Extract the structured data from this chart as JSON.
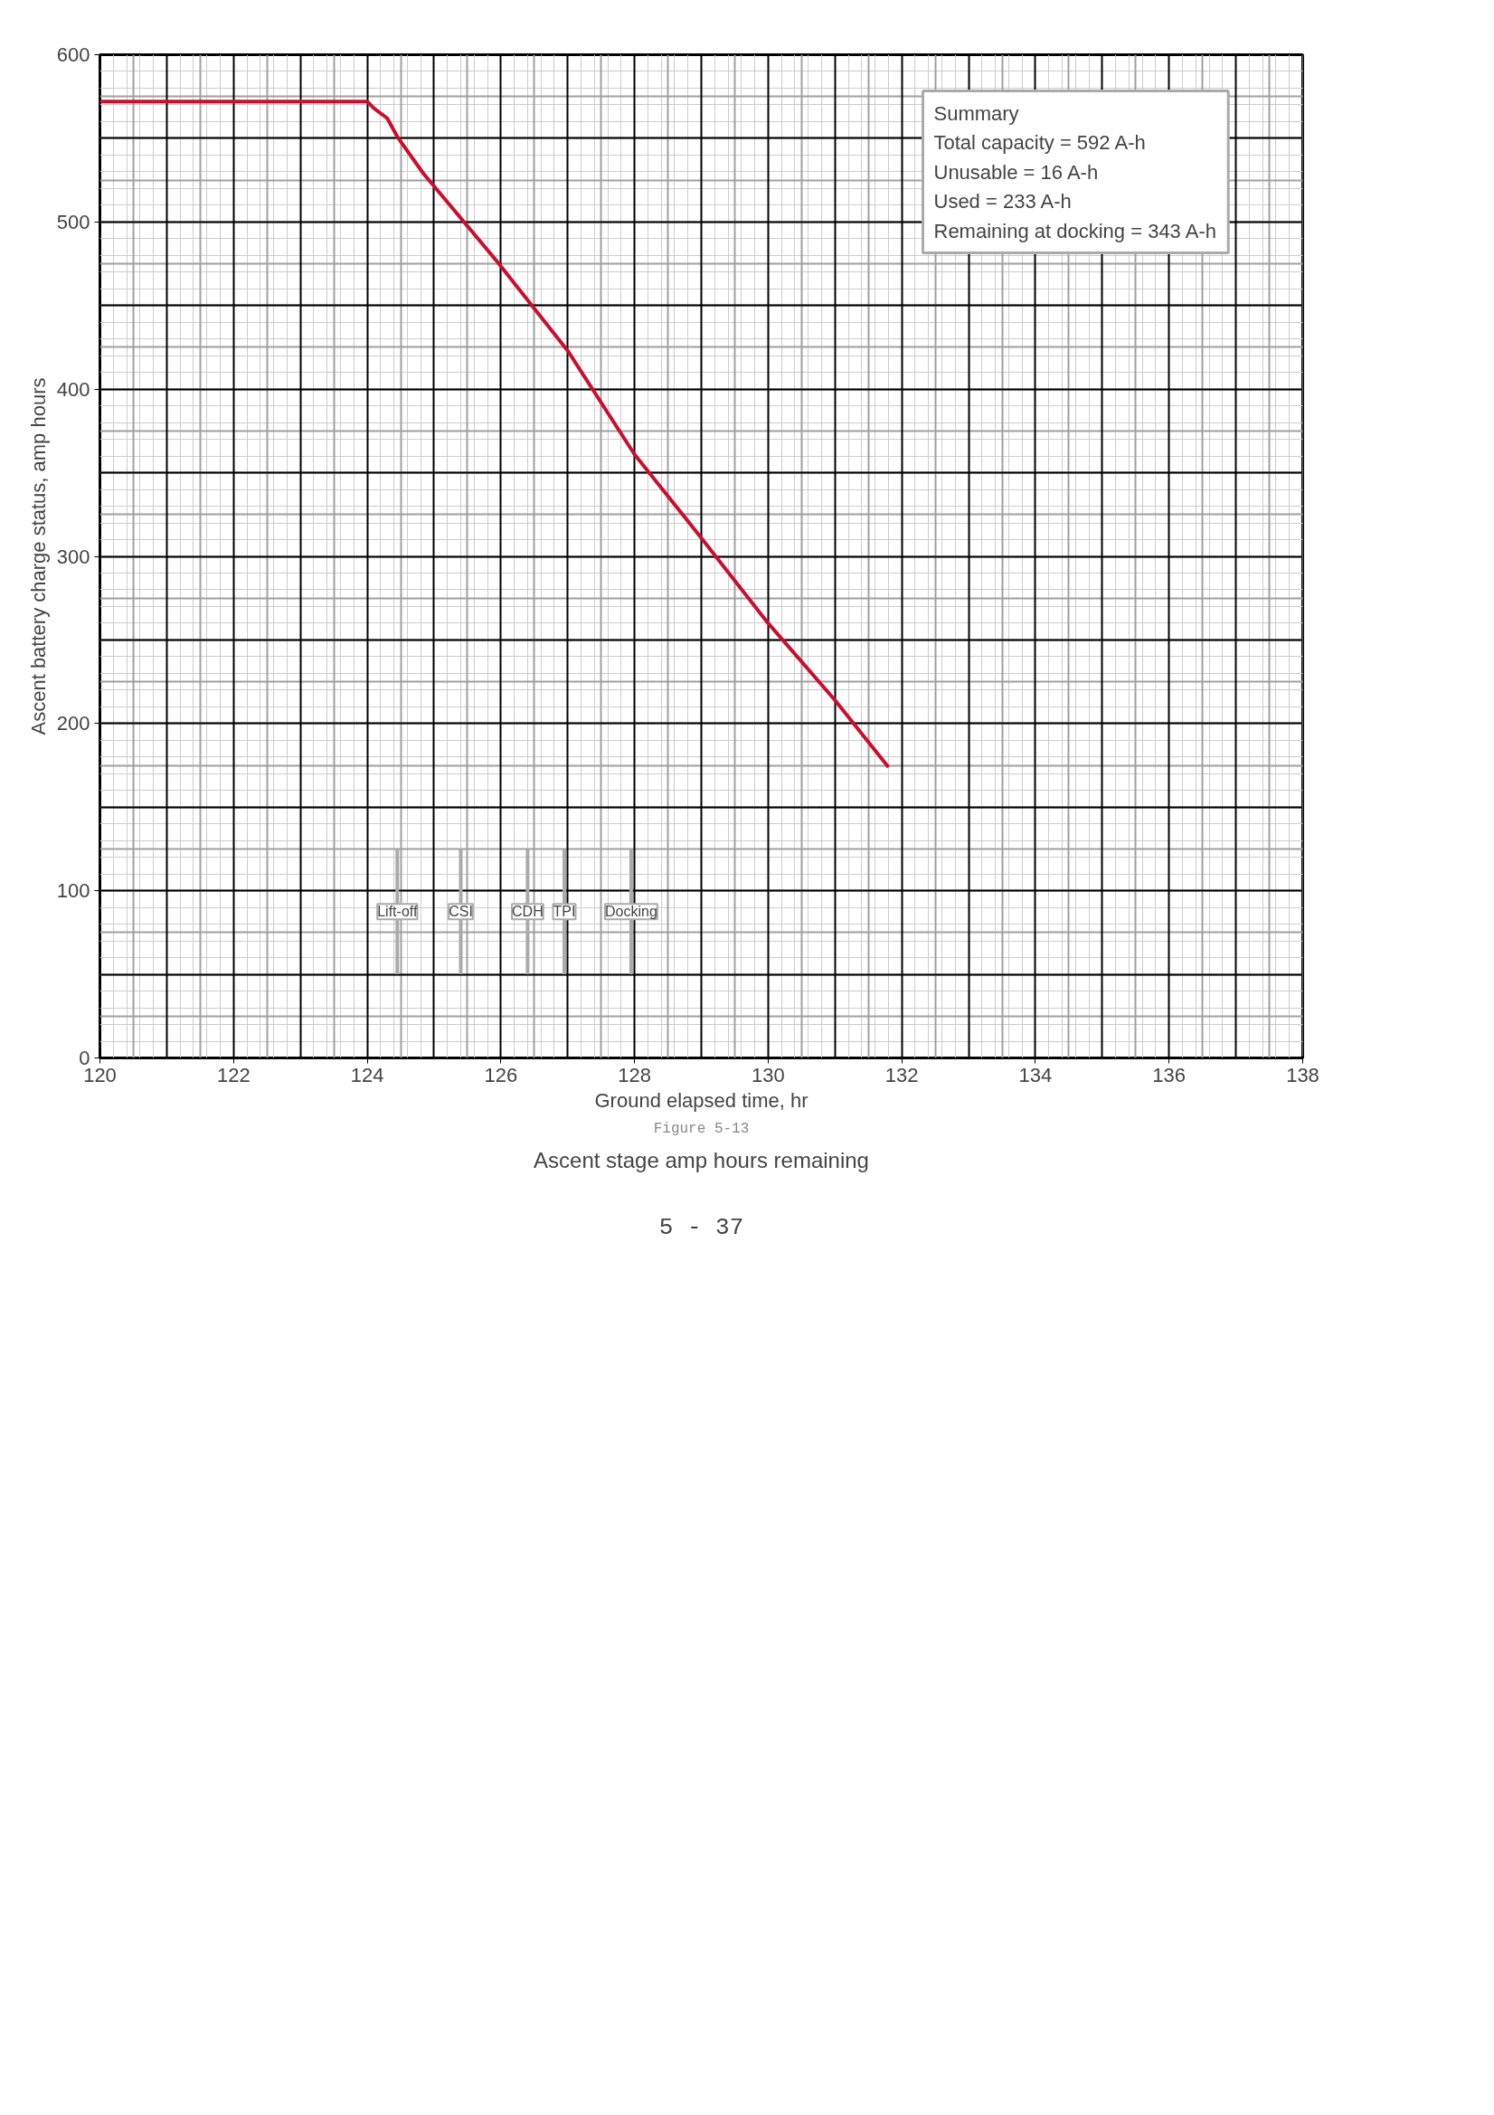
{
  "chart_data": {
    "type": "line",
    "title": "Ascent stage amp hours remaining",
    "subtitle": "Figure 5-13",
    "xlabel": "Ground elapsed time, hr",
    "ylabel": "Ascent battery charge status, amp hours",
    "x": [
      120,
      124,
      124.1,
      124.3,
      124.45,
      124.84,
      125.93,
      127,
      128,
      129,
      130,
      131,
      131.8
    ],
    "series": [
      {
        "color": "#c8102e",
        "values": [
          572,
          572,
          568,
          562,
          551,
          529,
          477,
          423,
          361,
          311,
          260,
          214,
          174
        ]
      }
    ],
    "xlim": [
      120,
      138
    ],
    "xticks": [
      120,
      122,
      124,
      126,
      128,
      130,
      132,
      134,
      136,
      138
    ],
    "ylim": [
      0,
      600
    ],
    "yticks": [
      0,
      100,
      200,
      300,
      400,
      500,
      600
    ],
    "grid": true,
    "marker": "none",
    "line_style": "solid",
    "annotations": [
      "Summary",
      "Total capacity = 592 A-h",
      "Unusable = 16 A-h",
      "Used = 233 A-h",
      "Remaining at docking = 343 A-h",
      "5 - 37"
    ],
    "ref_lines": [
      {
        "axis": "x",
        "value": 124.45,
        "label": "Lift-off",
        "color": "#aaaaaa"
      },
      {
        "axis": "x",
        "value": 125.4,
        "label": "CSI",
        "color": "#aaaaaa"
      },
      {
        "axis": "x",
        "value": 126.4,
        "label": "CDH",
        "color": "#aaaaaa"
      },
      {
        "axis": "x",
        "value": 126.95,
        "label": "TPI",
        "color": "#aaaaaa"
      },
      {
        "axis": "x",
        "value": 127.95,
        "label": "Docking",
        "color": "#aaaaaa"
      }
    ]
  }
}
